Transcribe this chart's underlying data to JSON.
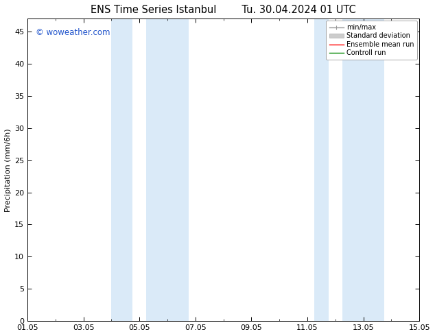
{
  "title_left": "ENS Time Series Istanbul",
  "title_right": "Tu. 30.04.2024 01 UTC",
  "ylabel": "Precipitation (mm/6h)",
  "xlim_dates": [
    "01.05",
    "03.05",
    "05.05",
    "07.05",
    "09.05",
    "11.05",
    "13.05",
    "15.05"
  ],
  "x_tick_positions": [
    0,
    2,
    4,
    6,
    8,
    10,
    12,
    14
  ],
  "xlim": [
    0,
    14
  ],
  "ylim": [
    0,
    47
  ],
  "yticks": [
    0,
    5,
    10,
    15,
    20,
    25,
    30,
    35,
    40,
    45
  ],
  "shaded_regions": [
    [
      3.0,
      3.5
    ],
    [
      3.5,
      5.5
    ],
    [
      10.5,
      11.0
    ],
    [
      11.0,
      12.5
    ]
  ],
  "shade_color_dark": "#c8dff0",
  "shade_color_light": "#ddeeff",
  "watermark_text": "© woweather.com",
  "watermark_color": "#2255cc",
  "legend_items": [
    {
      "label": "min/max",
      "color": "#999999",
      "lw": 1.0,
      "style": "minmax"
    },
    {
      "label": "Standard deviation",
      "color": "#cccccc",
      "lw": 5,
      "style": "band"
    },
    {
      "label": "Ensemble mean run",
      "color": "#ff0000",
      "lw": 1.0,
      "style": "line"
    },
    {
      "label": "Controll run",
      "color": "#008800",
      "lw": 1.0,
      "style": "line"
    }
  ],
  "bg_color": "#ffffff",
  "tick_label_fontsize": 8,
  "title_fontsize": 10.5,
  "ylabel_fontsize": 8,
  "grid_color": "#dddddd"
}
